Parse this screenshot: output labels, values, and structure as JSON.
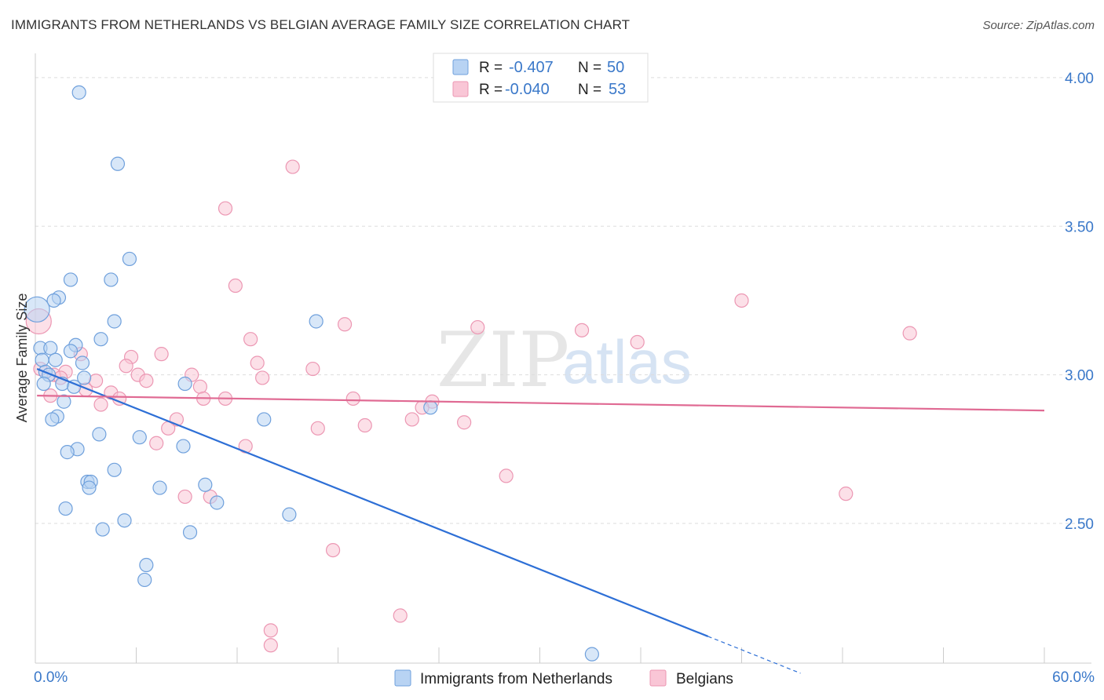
{
  "title": "IMMIGRANTS FROM NETHERLANDS VS BELGIAN AVERAGE FAMILY SIZE CORRELATION CHART",
  "source": "Source: ZipAtlas.com",
  "watermark": {
    "part1": "ZIP",
    "part2": "atlas"
  },
  "colors": {
    "blue_fill": "#b8d3f3",
    "blue_stroke": "#6fa0dc",
    "blue_line": "#2d6fd6",
    "pink_fill": "#f9c6d6",
    "pink_stroke": "#ec97b3",
    "pink_line": "#e06a93",
    "grid": "#dddddd",
    "axis_text": "#3a78c9"
  },
  "legend": {
    "r_label": "R =",
    "n_label": "N =",
    "series": [
      {
        "r": "-0.407",
        "n": "50"
      },
      {
        "r": "-0.040",
        "n": "53"
      }
    ]
  },
  "chart_data": {
    "type": "scatter",
    "title": "IMMIGRANTS FROM NETHERLANDS VS BELGIAN AVERAGE FAMILY SIZE CORRELATION CHART",
    "xlabel": "",
    "ylabel": "Average Family Size",
    "xlim": [
      0,
      60
    ],
    "ylim": [
      2.03,
      4.05
    ],
    "x_tick_labels": {
      "left": "0.0%",
      "right": "60.0%"
    },
    "y_ticks": [
      2.5,
      3.0,
      3.5,
      4.0
    ],
    "y_tick_labels": [
      "2.50",
      "3.00",
      "3.50",
      "4.00"
    ],
    "legend_position": "bottom-center",
    "series": [
      {
        "name": "Immigrants from Netherlands",
        "color": "blue",
        "trend": {
          "x0": 0.1,
          "y0": 3.02,
          "x1": 40.0,
          "y1": 2.12,
          "dash_to_x": 45.5
        },
        "points": [
          [
            2.6,
            3.95
          ],
          [
            4.9,
            3.71
          ],
          [
            5.6,
            3.39
          ],
          [
            4.5,
            3.32
          ],
          [
            2.1,
            3.32
          ],
          [
            1.4,
            3.26
          ],
          [
            1.1,
            3.25
          ],
          [
            0.1,
            3.22
          ],
          [
            4.7,
            3.18
          ],
          [
            16.7,
            3.18
          ],
          [
            3.9,
            3.12
          ],
          [
            2.4,
            3.1
          ],
          [
            0.3,
            3.09
          ],
          [
            0.9,
            3.09
          ],
          [
            2.1,
            3.08
          ],
          [
            0.4,
            3.05
          ],
          [
            1.2,
            3.05
          ],
          [
            2.8,
            3.04
          ],
          [
            0.6,
            3.01
          ],
          [
            0.8,
            3.0
          ],
          [
            2.9,
            2.99
          ],
          [
            0.5,
            2.97
          ],
          [
            1.6,
            2.97
          ],
          [
            2.3,
            2.96
          ],
          [
            8.9,
            2.97
          ],
          [
            1.7,
            2.91
          ],
          [
            23.5,
            2.89
          ],
          [
            1.3,
            2.86
          ],
          [
            1.0,
            2.85
          ],
          [
            13.6,
            2.85
          ],
          [
            3.8,
            2.8
          ],
          [
            6.2,
            2.79
          ],
          [
            8.8,
            2.76
          ],
          [
            2.5,
            2.75
          ],
          [
            1.9,
            2.74
          ],
          [
            4.7,
            2.68
          ],
          [
            3.1,
            2.64
          ],
          [
            3.3,
            2.64
          ],
          [
            3.2,
            2.62
          ],
          [
            7.4,
            2.62
          ],
          [
            10.1,
            2.63
          ],
          [
            10.8,
            2.57
          ],
          [
            1.8,
            2.55
          ],
          [
            15.1,
            2.53
          ],
          [
            5.3,
            2.51
          ],
          [
            4.0,
            2.48
          ],
          [
            9.2,
            2.47
          ],
          [
            6.6,
            2.36
          ],
          [
            6.5,
            2.31
          ],
          [
            33.1,
            2.06
          ]
        ]
      },
      {
        "name": "Belgians",
        "color": "pink",
        "trend": {
          "x0": 0.1,
          "y0": 2.93,
          "x1": 60.0,
          "y1": 2.88
        },
        "points": [
          [
            15.3,
            3.7
          ],
          [
            11.3,
            3.56
          ],
          [
            11.9,
            3.3
          ],
          [
            42.0,
            3.25
          ],
          [
            18.4,
            3.17
          ],
          [
            26.3,
            3.16
          ],
          [
            32.5,
            3.15
          ],
          [
            52.0,
            3.14
          ],
          [
            12.8,
            3.12
          ],
          [
            35.8,
            3.11
          ],
          [
            0.2,
            3.18
          ],
          [
            2.7,
            3.07
          ],
          [
            7.5,
            3.07
          ],
          [
            5.7,
            3.06
          ],
          [
            13.2,
            3.04
          ],
          [
            5.4,
            3.03
          ],
          [
            16.5,
            3.02
          ],
          [
            1.8,
            3.01
          ],
          [
            1.1,
            3.0
          ],
          [
            6.1,
            3.0
          ],
          [
            9.3,
            3.0
          ],
          [
            13.5,
            2.99
          ],
          [
            1.5,
            2.99
          ],
          [
            3.6,
            2.98
          ],
          [
            6.6,
            2.98
          ],
          [
            9.8,
            2.96
          ],
          [
            3.0,
            2.95
          ],
          [
            4.5,
            2.94
          ],
          [
            0.9,
            2.93
          ],
          [
            5.0,
            2.92
          ],
          [
            10.0,
            2.92
          ],
          [
            11.3,
            2.92
          ],
          [
            18.9,
            2.92
          ],
          [
            23.6,
            2.91
          ],
          [
            3.9,
            2.9
          ],
          [
            23.0,
            2.89
          ],
          [
            8.4,
            2.85
          ],
          [
            22.4,
            2.85
          ],
          [
            25.5,
            2.84
          ],
          [
            19.6,
            2.83
          ],
          [
            16.8,
            2.82
          ],
          [
            7.9,
            2.82
          ],
          [
            7.2,
            2.77
          ],
          [
            12.5,
            2.76
          ],
          [
            28.0,
            2.66
          ],
          [
            48.2,
            2.6
          ],
          [
            8.9,
            2.59
          ],
          [
            10.4,
            2.59
          ],
          [
            17.7,
            2.41
          ],
          [
            21.7,
            2.19
          ],
          [
            14.0,
            2.14
          ],
          [
            14.0,
            2.09
          ],
          [
            0.3,
            3.02
          ]
        ]
      }
    ]
  }
}
